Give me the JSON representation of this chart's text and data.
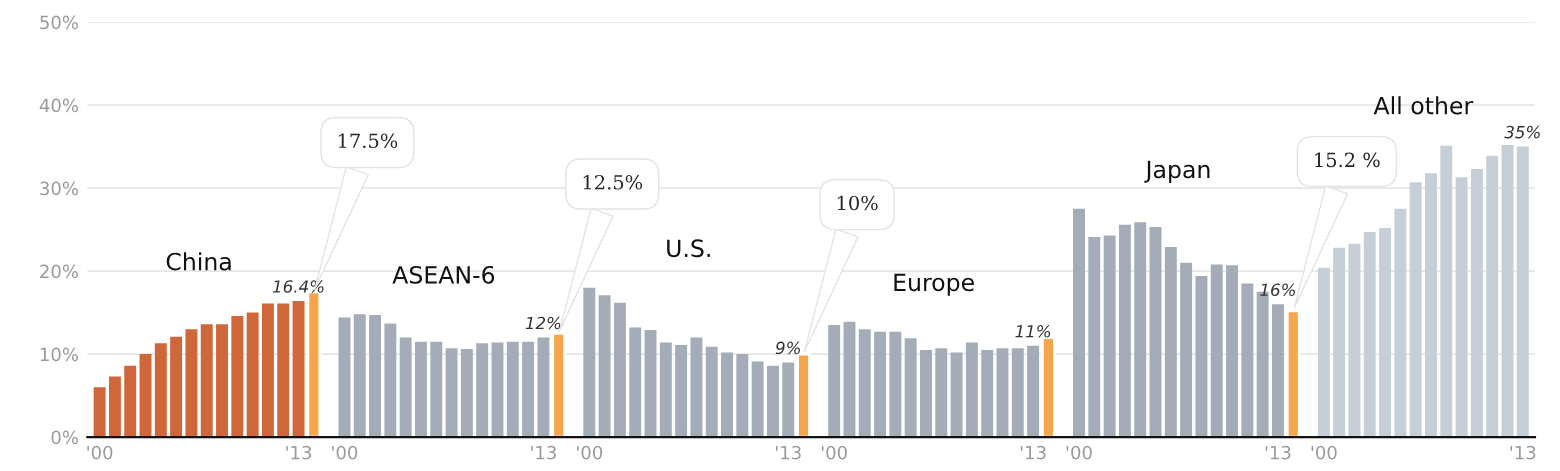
{
  "chart_data": {
    "type": "bar",
    "categories": [
      "'00",
      null,
      null,
      null,
      null,
      null,
      null,
      null,
      null,
      null,
      null,
      null,
      null,
      "'13",
      null,
      null,
      "'00",
      null,
      null,
      null,
      null,
      null,
      null,
      null,
      null,
      null,
      null,
      null,
      null,
      "'13",
      null,
      null,
      "'00",
      null,
      null,
      null,
      null,
      null,
      null,
      null,
      null,
      null,
      null,
      null,
      null,
      "'13",
      null,
      null,
      "'00",
      null,
      null,
      null,
      null,
      null,
      null,
      null,
      null,
      null,
      null,
      null,
      null,
      "'13",
      null,
      null,
      "'00",
      null,
      null,
      null,
      null,
      null,
      null,
      null,
      null,
      null,
      null,
      null,
      null,
      "'13",
      null,
      null,
      "'00",
      null,
      null,
      null,
      null,
      null,
      null,
      null,
      null,
      null,
      null,
      null,
      null,
      "'13"
    ],
    "series": [
      {
        "name": "China",
        "color": "#d0673a",
        "values": [
          6.0,
          7.3,
          8.6,
          10.0,
          11.3,
          12.1,
          13.0,
          13.6,
          13.6,
          14.6,
          15.0,
          16.1,
          16.1,
          16.4,
          null,
          null,
          null,
          null,
          null,
          null,
          null,
          null,
          null,
          null,
          null,
          null,
          null,
          null,
          null,
          null,
          null,
          null,
          null,
          null,
          null,
          null,
          null,
          null,
          null,
          null,
          null,
          null,
          null,
          null,
          null,
          null,
          null,
          null,
          null,
          null,
          null,
          null,
          null,
          null,
          null,
          null,
          null,
          null,
          null,
          null,
          null,
          null,
          null,
          null,
          null,
          null,
          null,
          null,
          null,
          null,
          null,
          null,
          null,
          null,
          null,
          null,
          null,
          null,
          null,
          null,
          null,
          null,
          null,
          null,
          null,
          null,
          null,
          null,
          null,
          null,
          null,
          null,
          null,
          null
        ],
        "value_labels": [
          null,
          null,
          null,
          null,
          null,
          null,
          null,
          null,
          null,
          null,
          null,
          null,
          null,
          "16.4%",
          null,
          null,
          null,
          null,
          null,
          null,
          null,
          null,
          null,
          null,
          null,
          null,
          null,
          null,
          null,
          null,
          null,
          null,
          null,
          null,
          null,
          null,
          null,
          null,
          null,
          null,
          null,
          null,
          null,
          null,
          null,
          null,
          null,
          null,
          null,
          null,
          null,
          null,
          null,
          null,
          null,
          null,
          null,
          null,
          null,
          null,
          null,
          null,
          null,
          null,
          null,
          null,
          null,
          null,
          null,
          null,
          null,
          null,
          null,
          null,
          null,
          null,
          null,
          null,
          null,
          null,
          null,
          null,
          null,
          null,
          null,
          null,
          null,
          null,
          null,
          null,
          null,
          null,
          null,
          null
        ]
      },
      {
        "name": "ASEAN-6",
        "color": "#a3acb7",
        "values": [
          null,
          null,
          null,
          null,
          null,
          null,
          null,
          null,
          null,
          null,
          null,
          null,
          null,
          null,
          null,
          null,
          14.4,
          14.8,
          14.7,
          13.7,
          12.0,
          11.5,
          11.5,
          10.7,
          10.6,
          11.3,
          11.4,
          11.5,
          11.5,
          12,
          null,
          null,
          null,
          null,
          null,
          null,
          null,
          null,
          null,
          null,
          null,
          null,
          null,
          null,
          null,
          null,
          null,
          null,
          null,
          null,
          null,
          null,
          null,
          null,
          null,
          null,
          null,
          null,
          null,
          null,
          null,
          null,
          null,
          null,
          null,
          null,
          null,
          null,
          null,
          null,
          null,
          null,
          null,
          null,
          null,
          null,
          null,
          null,
          null,
          null,
          null,
          null,
          null,
          null,
          null,
          null,
          null,
          null,
          null,
          null,
          null,
          null,
          null,
          null
        ],
        "value_labels": [
          null,
          null,
          null,
          null,
          null,
          null,
          null,
          null,
          null,
          null,
          null,
          null,
          null,
          null,
          null,
          null,
          null,
          null,
          null,
          null,
          null,
          null,
          null,
          null,
          null,
          null,
          null,
          null,
          null,
          "12%",
          null,
          null,
          null,
          null,
          null,
          null,
          null,
          null,
          null,
          null,
          null,
          null,
          null,
          null,
          null,
          null,
          null,
          null,
          null,
          null,
          null,
          null,
          null,
          null,
          null,
          null,
          null,
          null,
          null,
          null,
          null,
          null,
          null,
          null,
          null,
          null,
          null,
          null,
          null,
          null,
          null,
          null,
          null,
          null,
          null,
          null,
          null,
          null,
          null,
          null,
          null,
          null,
          null,
          null,
          null,
          null,
          null,
          null,
          null,
          null,
          null,
          null,
          null,
          null
        ]
      },
      {
        "name": "U.S.",
        "color": "#a3acb7",
        "values": [
          null,
          null,
          null,
          null,
          null,
          null,
          null,
          null,
          null,
          null,
          null,
          null,
          null,
          null,
          null,
          null,
          null,
          null,
          null,
          null,
          null,
          null,
          null,
          null,
          null,
          null,
          null,
          null,
          null,
          null,
          null,
          null,
          18.0,
          17.1,
          16.2,
          13.2,
          12.9,
          11.4,
          11.1,
          12.0,
          10.9,
          10.2,
          10.0,
          9.1,
          8.6,
          9,
          null,
          null,
          null,
          null,
          null,
          null,
          null,
          null,
          null,
          null,
          null,
          null,
          null,
          null,
          null,
          null,
          null,
          null,
          null,
          null,
          null,
          null,
          null,
          null,
          null,
          null,
          null,
          null,
          null,
          null,
          null,
          null,
          null,
          null,
          null,
          null,
          null,
          null,
          null,
          null,
          null,
          null,
          null,
          null,
          null,
          null,
          null,
          null
        ],
        "value_labels": [
          null,
          null,
          null,
          null,
          null,
          null,
          null,
          null,
          null,
          null,
          null,
          null,
          null,
          null,
          null,
          null,
          null,
          null,
          null,
          null,
          null,
          null,
          null,
          null,
          null,
          null,
          null,
          null,
          null,
          null,
          null,
          null,
          null,
          null,
          null,
          null,
          null,
          null,
          null,
          null,
          null,
          null,
          null,
          null,
          null,
          "9%",
          null,
          null,
          null,
          null,
          null,
          null,
          null,
          null,
          null,
          null,
          null,
          null,
          null,
          null,
          null,
          null,
          null,
          null,
          null,
          null,
          null,
          null,
          null,
          null,
          null,
          null,
          null,
          null,
          null,
          null,
          null,
          null,
          null,
          null,
          null,
          null,
          null,
          null,
          null,
          null,
          null,
          null,
          null,
          null,
          null,
          null,
          null,
          null
        ]
      },
      {
        "name": "Europe",
        "color": "#a3acb7",
        "values": [
          null,
          null,
          null,
          null,
          null,
          null,
          null,
          null,
          null,
          null,
          null,
          null,
          null,
          null,
          null,
          null,
          null,
          null,
          null,
          null,
          null,
          null,
          null,
          null,
          null,
          null,
          null,
          null,
          null,
          null,
          null,
          null,
          null,
          null,
          null,
          null,
          null,
          null,
          null,
          null,
          null,
          null,
          null,
          null,
          null,
          null,
          null,
          null,
          13.5,
          13.9,
          13.0,
          12.7,
          12.7,
          11.9,
          10.5,
          10.7,
          10.2,
          11.4,
          10.5,
          10.7,
          10.7,
          11,
          null,
          null,
          null,
          null,
          null,
          null,
          null,
          null,
          null,
          null,
          null,
          null,
          null,
          null,
          null,
          null,
          null,
          null,
          null,
          null,
          null,
          null,
          null,
          null,
          null,
          null,
          null,
          null,
          null,
          null,
          null,
          null
        ],
        "value_labels": [
          null,
          null,
          null,
          null,
          null,
          null,
          null,
          null,
          null,
          null,
          null,
          null,
          null,
          null,
          null,
          null,
          null,
          null,
          null,
          null,
          null,
          null,
          null,
          null,
          null,
          null,
          null,
          null,
          null,
          null,
          null,
          null,
          null,
          null,
          null,
          null,
          null,
          null,
          null,
          null,
          null,
          null,
          null,
          null,
          null,
          null,
          null,
          null,
          null,
          null,
          null,
          null,
          null,
          null,
          null,
          null,
          null,
          null,
          null,
          null,
          null,
          "11%",
          null,
          null,
          null,
          null,
          null,
          null,
          null,
          null,
          null,
          null,
          null,
          null,
          null,
          null,
          null,
          null,
          null,
          null,
          null,
          null,
          null,
          null,
          null,
          null,
          null,
          null,
          null,
          null,
          null,
          null,
          null,
          null
        ]
      },
      {
        "name": "Japan",
        "color": "#a3acb7",
        "values": [
          null,
          null,
          null,
          null,
          null,
          null,
          null,
          null,
          null,
          null,
          null,
          null,
          null,
          null,
          null,
          null,
          null,
          null,
          null,
          null,
          null,
          null,
          null,
          null,
          null,
          null,
          null,
          null,
          null,
          null,
          null,
          null,
          null,
          null,
          null,
          null,
          null,
          null,
          null,
          null,
          null,
          null,
          null,
          null,
          null,
          null,
          null,
          null,
          null,
          null,
          null,
          null,
          null,
          null,
          null,
          null,
          null,
          null,
          null,
          null,
          null,
          null,
          null,
          null,
          27.5,
          24.1,
          24.3,
          25.6,
          25.9,
          25.3,
          22.9,
          21.0,
          19.4,
          20.8,
          20.7,
          18.5,
          17.5,
          16,
          null,
          null,
          null,
          null,
          null,
          null,
          null,
          null,
          null,
          null,
          null,
          null,
          null,
          null,
          null,
          null
        ],
        "value_labels": [
          null,
          null,
          null,
          null,
          null,
          null,
          null,
          null,
          null,
          null,
          null,
          null,
          null,
          null,
          null,
          null,
          null,
          null,
          null,
          null,
          null,
          null,
          null,
          null,
          null,
          null,
          null,
          null,
          null,
          null,
          null,
          null,
          null,
          null,
          null,
          null,
          null,
          null,
          null,
          null,
          null,
          null,
          null,
          null,
          null,
          null,
          null,
          null,
          null,
          null,
          null,
          null,
          null,
          null,
          null,
          null,
          null,
          null,
          null,
          null,
          null,
          null,
          null,
          null,
          null,
          null,
          null,
          null,
          null,
          null,
          null,
          null,
          null,
          null,
          null,
          null,
          null,
          "16%",
          null,
          null,
          null,
          null,
          null,
          null,
          null,
          null,
          null,
          null,
          null,
          null,
          null,
          null,
          null,
          null
        ]
      },
      {
        "name": "All other",
        "color": "#c6ced8",
        "values": [
          null,
          null,
          null,
          null,
          null,
          null,
          null,
          null,
          null,
          null,
          null,
          null,
          null,
          null,
          null,
          null,
          null,
          null,
          null,
          null,
          null,
          null,
          null,
          null,
          null,
          null,
          null,
          null,
          null,
          null,
          null,
          null,
          null,
          null,
          null,
          null,
          null,
          null,
          null,
          null,
          null,
          null,
          null,
          null,
          null,
          null,
          null,
          null,
          null,
          null,
          null,
          null,
          null,
          null,
          null,
          null,
          null,
          null,
          null,
          null,
          null,
          null,
          null,
          null,
          null,
          null,
          null,
          null,
          null,
          null,
          null,
          null,
          null,
          null,
          null,
          null,
          null,
          null,
          null,
          null,
          20.4,
          22.8,
          23.3,
          24.7,
          25.2,
          27.5,
          30.7,
          31.8,
          35.1,
          31.3,
          32.3,
          33.9,
          35.2,
          35
        ],
        "value_labels": [
          null,
          null,
          null,
          null,
          null,
          null,
          null,
          null,
          null,
          null,
          null,
          null,
          null,
          null,
          null,
          null,
          null,
          null,
          null,
          null,
          null,
          null,
          null,
          null,
          null,
          null,
          null,
          null,
          null,
          null,
          null,
          null,
          null,
          null,
          null,
          null,
          null,
          null,
          null,
          null,
          null,
          null,
          null,
          null,
          null,
          null,
          null,
          null,
          null,
          null,
          null,
          null,
          null,
          null,
          null,
          null,
          null,
          null,
          null,
          null,
          null,
          null,
          null,
          null,
          null,
          null,
          null,
          null,
          null,
          null,
          null,
          null,
          null,
          null,
          null,
          null,
          null,
          null,
          null,
          null,
          null,
          null,
          null,
          null,
          null,
          null,
          null,
          null,
          null,
          null,
          null,
          null,
          null,
          "35%"
        ]
      },
      {
        "color": "#f5a64a",
        "values": [
          null,
          null,
          null,
          null,
          null,
          null,
          null,
          null,
          null,
          null,
          null,
          null,
          null,
          null,
          17.5,
          null,
          null,
          null,
          null,
          null,
          null,
          null,
          null,
          null,
          null,
          null,
          null,
          null,
          null,
          null,
          12.5,
          null,
          null,
          null,
          null,
          null,
          null,
          null,
          null,
          null,
          null,
          null,
          null,
          null,
          null,
          null,
          10,
          null,
          null,
          null,
          null,
          null,
          null,
          null,
          null,
          null,
          null,
          null,
          null,
          null,
          null,
          null,
          12,
          null,
          null,
          null,
          null,
          null,
          null,
          null,
          null,
          null,
          null,
          null,
          null,
          null,
          null,
          null,
          15.2,
          null,
          null,
          null,
          null,
          null,
          null,
          null,
          null,
          null,
          null,
          null,
          null,
          null,
          null,
          null
        ],
        "value_labels": [
          null,
          null,
          null,
          null,
          null,
          null,
          null,
          null,
          null,
          null,
          null,
          null,
          null,
          null,
          "17.5%",
          null,
          null,
          null,
          null,
          null,
          null,
          null,
          null,
          null,
          null,
          null,
          null,
          null,
          null,
          null,
          "12.5%",
          null,
          null,
          null,
          null,
          null,
          null,
          null,
          null,
          null,
          null,
          null,
          null,
          null,
          null,
          null,
          "10%",
          null,
          null,
          null,
          null,
          null,
          null,
          null,
          null,
          null,
          null,
          null,
          null,
          null,
          null,
          null,
          null,
          null,
          null,
          null,
          null,
          null,
          null,
          null,
          null,
          null,
          null,
          null,
          null,
          null,
          null,
          null,
          "15.2 %",
          null,
          null,
          null,
          null,
          null,
          null,
          null,
          null,
          null,
          null,
          null,
          null,
          null,
          null,
          null
        ]
      }
    ],
    "ylim": [
      0,
      50
    ],
    "yticks": [
      {
        "value": 0,
        "label": "0%"
      },
      {
        "value": 10,
        "label": "10%"
      },
      {
        "value": 20,
        "label": "20%"
      },
      {
        "value": 30,
        "label": "30%"
      },
      {
        "value": 40,
        "label": "40%"
      },
      {
        "value": 50,
        "label": "50%"
      }
    ],
    "grid": "y"
  }
}
